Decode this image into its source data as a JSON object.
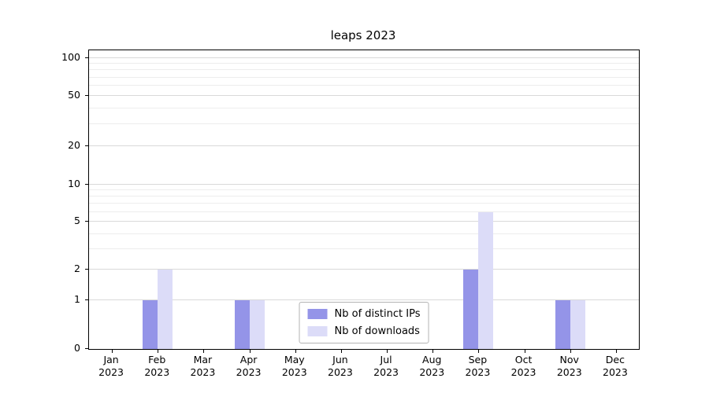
{
  "chart_data": {
    "type": "bar",
    "title": "leaps 2023",
    "categories": [
      "Jan",
      "Feb",
      "Mar",
      "Apr",
      "May",
      "Jun",
      "Jul",
      "Aug",
      "Sep",
      "Oct",
      "Nov",
      "Dec"
    ],
    "category_year": "2023",
    "series": [
      {
        "name": "Nb of distinct IPs",
        "color": "#9494e8",
        "values": [
          0,
          1,
          0,
          1,
          0,
          0,
          0,
          0,
          2,
          0,
          1,
          0
        ]
      },
      {
        "name": "Nb of downloads",
        "color": "#dcdcf8",
        "values": [
          0,
          2,
          0,
          1,
          0,
          0,
          0,
          0,
          6,
          0,
          1,
          0
        ]
      }
    ],
    "y_axis": {
      "scale": "asinh",
      "ticks": [
        0,
        1,
        2,
        5,
        10,
        20,
        50,
        100
      ],
      "minor_ticks": [
        3,
        4,
        6,
        7,
        8,
        9,
        30,
        40,
        60,
        70,
        80,
        90
      ],
      "max": 115
    },
    "xlabel": "",
    "ylabel": "",
    "grid": true,
    "legend_position": "lower center"
  },
  "colors": {
    "grid_major": "#d9d9d9",
    "grid_minor": "#ededed",
    "spine": "#000000",
    "background": "#ffffff"
  }
}
